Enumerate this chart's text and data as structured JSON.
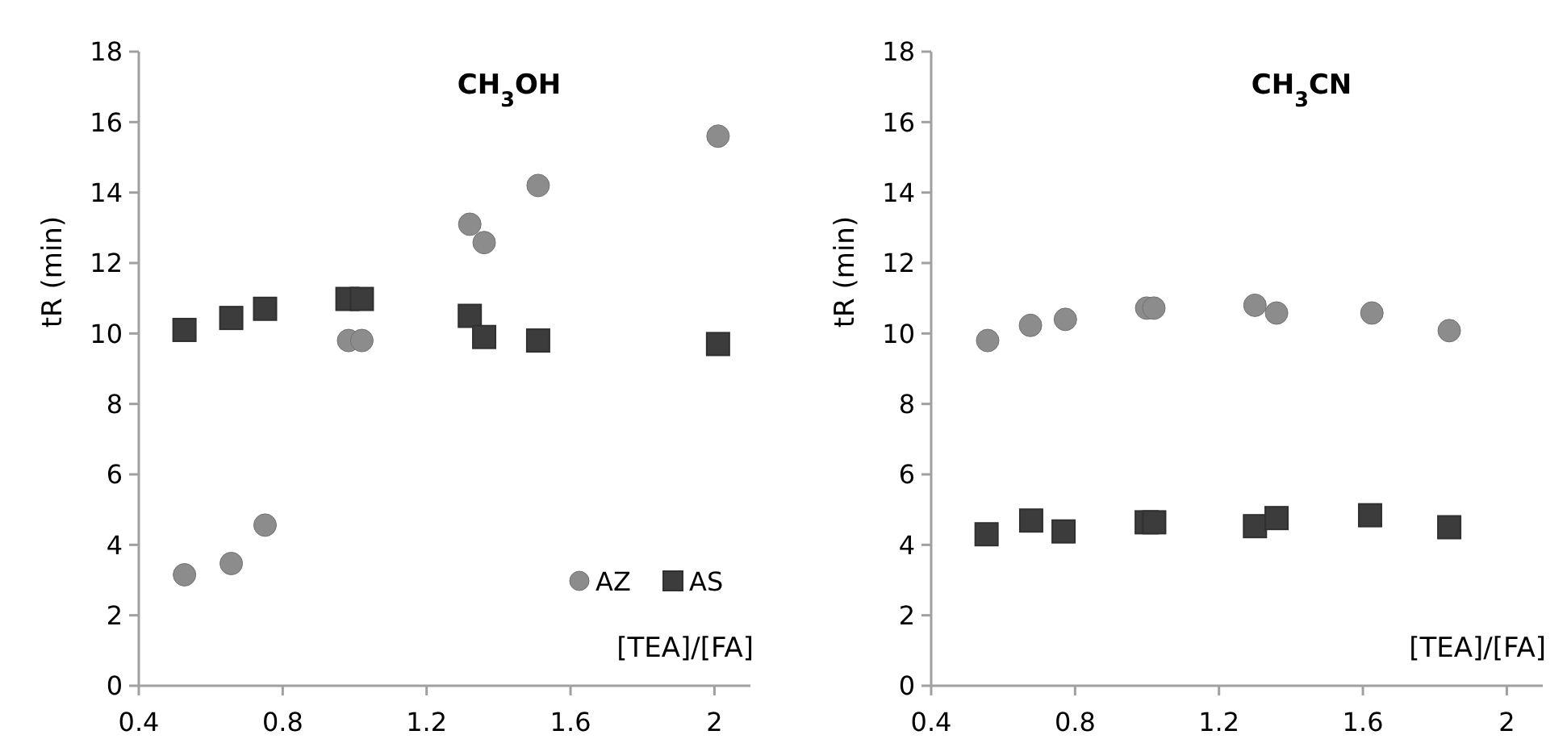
{
  "chart_data": [
    {
      "type": "scatter",
      "title": "CH$_{3}$OH",
      "xlabel": "[TEA]/[FA]",
      "ylabel": "tR (min)",
      "xlim": [
        0.4,
        2.1
      ],
      "xticks": [
        0.4,
        0.8,
        1.2,
        1.6,
        2
      ],
      "ylim": [
        0,
        18
      ],
      "yticks": [
        0,
        2,
        4,
        6,
        8,
        10,
        12,
        14,
        16,
        18
      ],
      "legend": "bottom right",
      "grid": false,
      "series": [
        {
          "name": "AZ",
          "color": "#8c8c8c",
          "marker": "circle",
          "x": [
            0.527,
            0.657,
            0.751,
            0.983,
            1.02,
            1.32,
            1.36,
            1.51,
            2.01
          ],
          "values": [
            3.15,
            3.47,
            4.56,
            9.8,
            9.8,
            13.1,
            12.58,
            14.2,
            15.6
          ]
        },
        {
          "name": "AS",
          "color": "#3c3c3c",
          "marker": "square",
          "x": [
            0.527,
            0.657,
            0.751,
            0.98,
            1.02,
            1.32,
            1.36,
            1.51,
            2.01
          ],
          "values": [
            10.1,
            10.44,
            10.7,
            10.98,
            10.98,
            10.5,
            9.9,
            9.8,
            9.7
          ]
        }
      ]
    },
    {
      "type": "scatter",
      "title": "CH$_{3}$CN",
      "xlabel": "[TEA]/[FA]",
      "ylabel": "tR (min)",
      "xlim": [
        0.4,
        2.1
      ],
      "xticks": [
        0.4,
        0.8,
        1.2,
        1.6,
        2
      ],
      "ylim": [
        0,
        18
      ],
      "yticks": [
        0,
        2,
        4,
        6,
        8,
        10,
        12,
        14,
        16,
        18
      ],
      "legend": false,
      "grid": false,
      "series": [
        {
          "color": "#8c8c8c",
          "marker": "circle",
          "x": [
            0.557,
            0.676,
            0.773,
            0.999,
            1.019,
            1.3,
            1.36,
            1.625,
            1.84
          ],
          "values": [
            9.8,
            10.23,
            10.4,
            10.72,
            10.72,
            10.8,
            10.58,
            10.58,
            10.08
          ]
        },
        {
          "color": "#3c3c3c",
          "marker": "square",
          "x": [
            0.554,
            0.678,
            0.768,
            0.999,
            1.02,
            1.3,
            1.36,
            1.62,
            1.84
          ],
          "values": [
            4.3,
            4.69,
            4.38,
            4.64,
            4.64,
            4.53,
            4.76,
            4.84,
            4.5
          ]
        }
      ]
    }
  ]
}
